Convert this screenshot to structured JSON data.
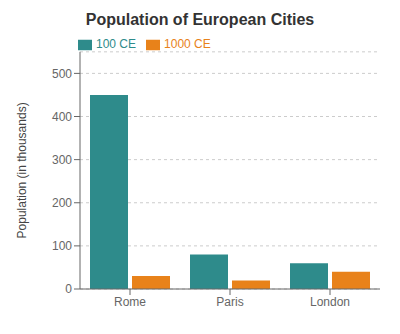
{
  "chart_data": {
    "type": "bar",
    "title": "Population of European Cities",
    "categories": [
      "Rome",
      "Paris",
      "London"
    ],
    "series": [
      {
        "name": "100 CE",
        "color": "#2E8B8B",
        "values": [
          450,
          80,
          60
        ]
      },
      {
        "name": "1000 CE",
        "color": "#E8821A",
        "values": [
          30,
          20,
          40
        ]
      }
    ],
    "ylabel": "Population (in thousands)",
    "ylim": [
      0,
      550
    ],
    "yticks": [
      0,
      100,
      200,
      300,
      400,
      500
    ],
    "grid": true,
    "legend": "upper left"
  }
}
